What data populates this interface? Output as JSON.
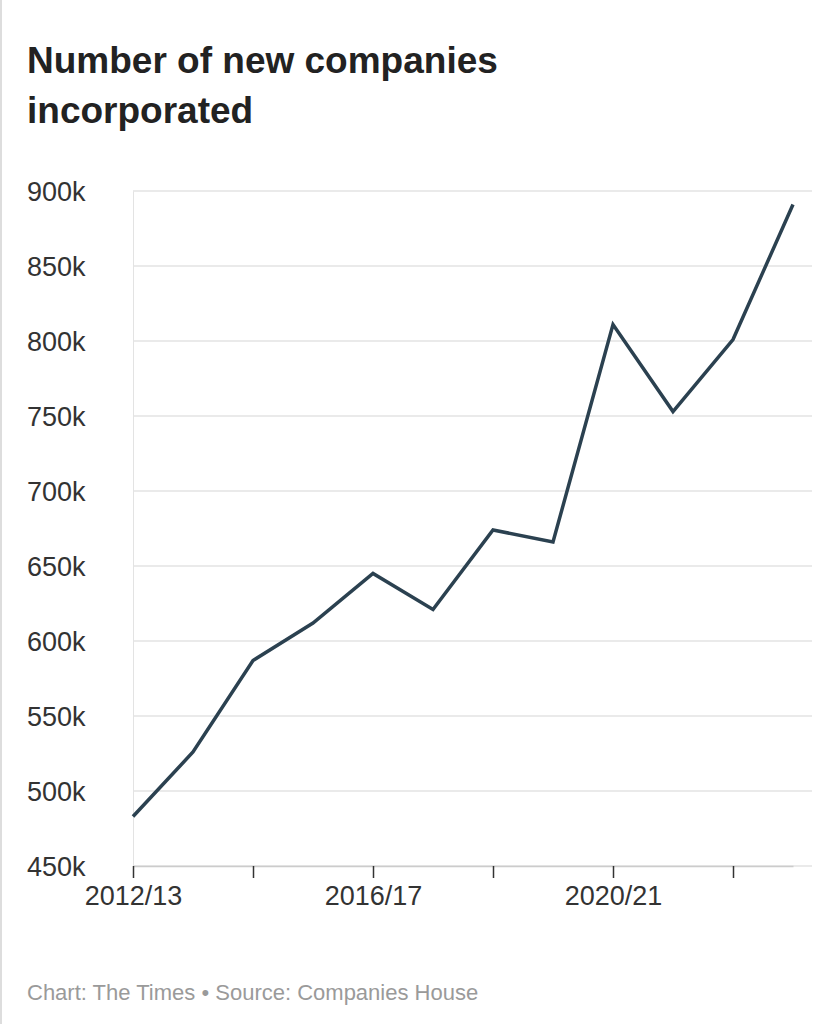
{
  "chart_data": {
    "type": "line",
    "title": "Number of new companies incorporated",
    "source": "Chart: The Times • Source: Companies House",
    "categories": [
      "2012/13",
      null,
      null,
      null,
      "2016/17",
      null,
      null,
      null,
      "2020/21",
      null,
      null,
      null
    ],
    "values": [
      483000,
      526000,
      587000,
      612000,
      645000,
      621000,
      674000,
      666000,
      811000,
      753000,
      801000,
      891000
    ],
    "color": "#2b4150",
    "ylim": [
      450000,
      900000
    ],
    "yticks": [
      {
        "value": 450000,
        "label": "450k"
      },
      {
        "value": 500000,
        "label": "500k"
      },
      {
        "value": 550000,
        "label": "550k"
      },
      {
        "value": 600000,
        "label": "600k"
      },
      {
        "value": 650000,
        "label": "650k"
      },
      {
        "value": 700000,
        "label": "700k"
      },
      {
        "value": 750000,
        "label": "750k"
      },
      {
        "value": 800000,
        "label": "800k"
      },
      {
        "value": 850000,
        "label": "850k"
      },
      {
        "value": 900000,
        "label": "900k"
      }
    ],
    "grid": true
  }
}
